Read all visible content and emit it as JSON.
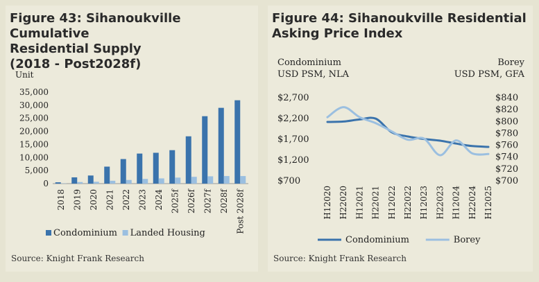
{
  "left": {
    "title_lines": [
      "Figure 43: Sihanoukville Cumulative",
      "Residential Supply",
      "(2018 - Post2028f)"
    ],
    "source": "Source:  Knight Frank Research"
  },
  "right": {
    "title_lines": [
      "Figure 44: Sihanoukville Residential",
      "Asking Price Index"
    ],
    "source": "Source:  Knight Frank Research"
  },
  "colors": {
    "dark_blue": "#3a73ac",
    "light_blue": "#9bbfe0",
    "panel_bg": "#eceadb",
    "page_bg": "#e6e4d2"
  },
  "chart_data": [
    {
      "type": "bar",
      "ylabel": "Unit",
      "ylim": [
        0,
        35000
      ],
      "yticks": [
        "0",
        "5,000",
        "10,000",
        "15,000",
        "20,000",
        "25,000",
        "30,000",
        "35,000"
      ],
      "categories": [
        "2018",
        "2019",
        "2020",
        "2021",
        "2022",
        "2023",
        "2024",
        "2025f",
        "2026f",
        "2027f",
        "2028f",
        "Post 2028f"
      ],
      "series": [
        {
          "name": "Condominium",
          "color": "#3a73ac",
          "values": [
            500,
            2400,
            3100,
            6500,
            9400,
            11500,
            11800,
            12800,
            18100,
            25800,
            29000,
            31900
          ]
        },
        {
          "name": "Landed Housing",
          "color": "#9bbfe0",
          "values": [
            100,
            600,
            700,
            1100,
            1400,
            1800,
            2000,
            2300,
            2600,
            2800,
            2900,
            2900
          ]
        }
      ],
      "legend": "bottom"
    },
    {
      "type": "line",
      "ylabel_left": [
        "Condominium",
        "USD PSM, NLA"
      ],
      "ylabel_right": [
        "Borey",
        "USD PSM, GFA"
      ],
      "ylim_left": [
        700,
        2700
      ],
      "yticks_left": [
        "$700",
        "$1,200",
        "$1,700",
        "$2,200",
        "$2,700"
      ],
      "ylim_right": [
        700,
        840
      ],
      "yticks_right": [
        "$700",
        "$720",
        "$740",
        "$760",
        "$780",
        "$800",
        "$820",
        "$840"
      ],
      "categories": [
        "H12020",
        "H22020",
        "H12021",
        "H22021",
        "H12022",
        "H22022",
        "H12023",
        "H22023",
        "H12024",
        "H22024",
        "H12025"
      ],
      "series": [
        {
          "name": "Condominium",
          "axis": "left",
          "color": "#3a73ac",
          "values": [
            2100,
            2110,
            2160,
            2180,
            1850,
            1750,
            1690,
            1650,
            1580,
            1520,
            1500
          ]
        },
        {
          "name": "Borey",
          "axis": "right",
          "color": "#9bbfe0",
          "values": [
            806,
            823,
            806,
            796,
            782,
            768,
            770,
            742,
            767,
            745,
            744
          ]
        }
      ],
      "legend": "bottom"
    }
  ]
}
